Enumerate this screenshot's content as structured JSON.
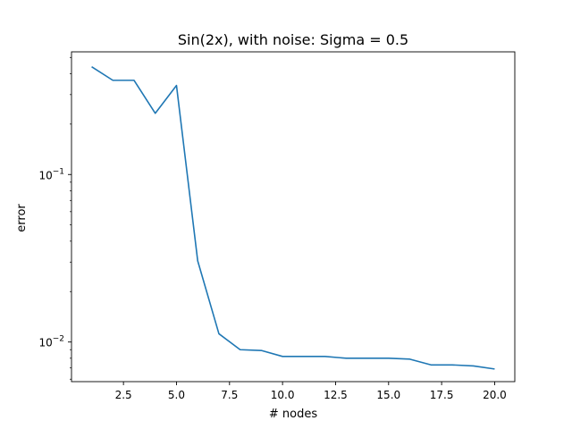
{
  "chart_data": {
    "type": "line",
    "title": "Sin(2x), with noise: Sigma = 0.5",
    "xlabel": "# nodes",
    "ylabel": "error",
    "yscale": "log",
    "xlim": [
      0.05,
      20.95
    ],
    "ylim": [
      0.0058,
      0.54
    ],
    "x_ticks": [
      2.5,
      5.0,
      7.5,
      10.0,
      12.5,
      15.0,
      17.5,
      20.0
    ],
    "x_tick_labels": [
      "2.5",
      "5.0",
      "7.5",
      "10.0",
      "12.5",
      "15.0",
      "17.5",
      "20.0"
    ],
    "y_ticks": [
      0.01,
      0.1
    ],
    "y_tick_labels": [
      {
        "base": "10",
        "exp": "−2"
      },
      {
        "base": "10",
        "exp": "−1"
      }
    ],
    "grid": false,
    "color": "#1f77b4",
    "series": [
      {
        "x": [
          1,
          2,
          3,
          4,
          5,
          6,
          7,
          8,
          9,
          10,
          11,
          12,
          13,
          14,
          15,
          16,
          17,
          18,
          19,
          20
        ],
        "values": [
          0.44,
          0.365,
          0.365,
          0.232,
          0.34,
          0.0305,
          0.0112,
          0.009,
          0.0089,
          0.0082,
          0.0082,
          0.0082,
          0.008,
          0.008,
          0.008,
          0.0079,
          0.0073,
          0.0073,
          0.0072,
          0.0069
        ]
      }
    ]
  }
}
